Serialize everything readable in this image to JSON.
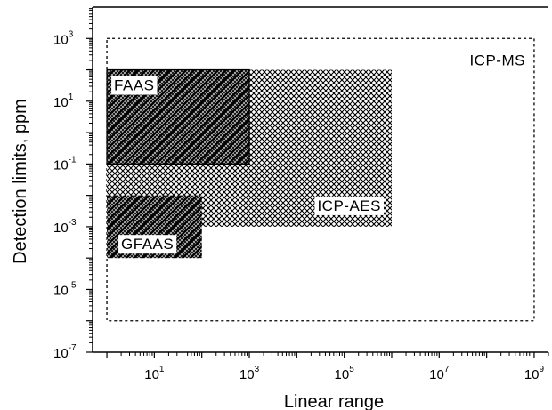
{
  "chart_data": {
    "type": "range-box",
    "xlabel": "Linear range",
    "ylabel": "Detection limits, ppm",
    "x_scale": "log",
    "y_scale": "log",
    "xlim": [
      0.5,
      2000000000
    ],
    "ylim": [
      1e-07,
      10000
    ],
    "x_tick_labels": [
      {
        "base": "10",
        "exp": "1",
        "value": 10
      },
      {
        "base": "10",
        "exp": "3",
        "value": 1000
      },
      {
        "base": "10",
        "exp": "5",
        "value": 100000
      },
      {
        "base": "10",
        "exp": "7",
        "value": 10000000
      },
      {
        "base": "10",
        "exp": "9",
        "value": 1000000000
      }
    ],
    "y_tick_labels": [
      {
        "base": "10",
        "exp": "3",
        "value": 1000
      },
      {
        "base": "10",
        "exp": "1",
        "value": 10
      },
      {
        "base": "10",
        "exp": "-1",
        "value": 0.1
      },
      {
        "base": "10",
        "exp": "-3",
        "value": 0.001
      },
      {
        "base": "10",
        "exp": "-5",
        "value": 1e-05
      },
      {
        "base": "10",
        "exp": "-7",
        "value": 1e-07
      }
    ],
    "grid": false,
    "legend": "none",
    "regions": [
      {
        "name": "ICP-MS",
        "x_range": [
          1,
          1000000000
        ],
        "y_range": [
          1e-06,
          1000
        ],
        "style": "dashed-outline"
      },
      {
        "name": "ICP-AES",
        "x_range": [
          1,
          1000000
        ],
        "y_range": [
          0.001,
          100
        ],
        "style": "crosshatch"
      },
      {
        "name": "FAAS",
        "x_range": [
          1,
          1000
        ],
        "y_range": [
          0.1,
          100
        ],
        "style": "dense-diagonal-hatch"
      },
      {
        "name": "GFAAS",
        "x_range": [
          1,
          100
        ],
        "y_range": [
          0.0001,
          0.01
        ],
        "style": "dense-diagonal-hatch"
      }
    ]
  }
}
